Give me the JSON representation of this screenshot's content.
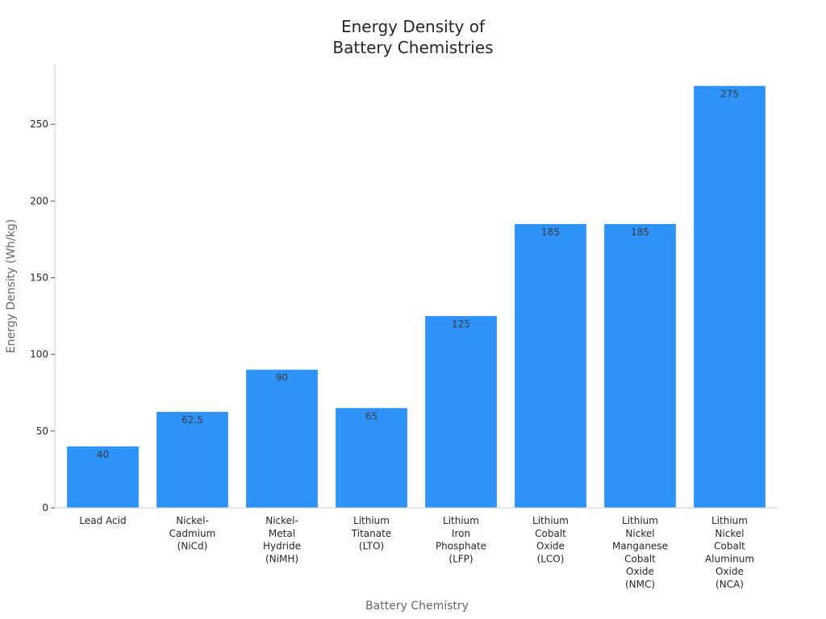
{
  "chart_data": {
    "type": "bar",
    "title_lines": [
      "Energy Density of",
      "Battery Chemistries"
    ],
    "xlabel": "Battery Chemistry",
    "ylabel": "Energy Density (Wh/kg)",
    "ylim": [
      0,
      289
    ],
    "yticks": [
      0,
      50,
      100,
      150,
      200,
      250
    ],
    "grid": false,
    "bar_color": "#2e93f8",
    "categories": [
      [
        "Lead Acid"
      ],
      [
        "Nickel-",
        "Cadmium",
        "(NiCd)"
      ],
      [
        "Nickel-",
        "Metal",
        "Hydride",
        "(NiMH)"
      ],
      [
        "Lithium",
        "Titanate",
        "(LTO)"
      ],
      [
        "Lithium",
        "Iron",
        "Phosphate",
        "(LFP)"
      ],
      [
        "Lithium",
        "Cobalt",
        "Oxide",
        "(LCO)"
      ],
      [
        "Lithium",
        "Nickel",
        "Manganese",
        "Cobalt",
        "Oxide",
        "(NMC)"
      ],
      [
        "Lithium",
        "Nickel",
        "Cobalt",
        "Aluminum",
        "Oxide",
        "(NCA)"
      ]
    ],
    "values": [
      40,
      62.5,
      90,
      65,
      125,
      185,
      185,
      275
    ],
    "value_labels": [
      "40",
      "62.5",
      "90",
      "65",
      "125",
      "185",
      "185",
      "275"
    ]
  }
}
